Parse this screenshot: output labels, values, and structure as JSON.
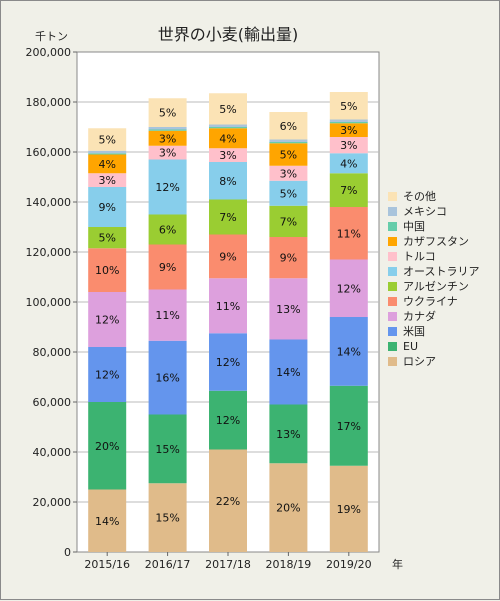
{
  "chart_data": {
    "type": "stacked-bar",
    "title": "世界の小麦(輸出量)",
    "ylabel": "千トン",
    "xlabel": "年",
    "ylim": [
      0,
      200000
    ],
    "y_ticks": [
      "0",
      "20,000",
      "40,000",
      "60,000",
      "80,000",
      "100,000",
      "120,000",
      "140,000",
      "160,000",
      "180,000",
      "200,000"
    ],
    "categories": [
      "2015/16",
      "2016/17",
      "2017/18",
      "2018/19",
      "2019/20"
    ],
    "legend_position": "right",
    "series": [
      {
        "name": "ロシア",
        "color": "#e0bb8a",
        "values": [
          25000,
          27500,
          41000,
          35500,
          34500
        ],
        "labels": [
          "14%",
          "15%",
          "22%",
          "20%",
          "19%"
        ]
      },
      {
        "name": "EU",
        "color": "#3cb371",
        "values": [
          35000,
          27500,
          23500,
          23500,
          32000
        ],
        "labels": [
          "20%",
          "15%",
          "12%",
          "13%",
          "17%"
        ]
      },
      {
        "name": "米国",
        "color": "#6495ed",
        "values": [
          22000,
          29500,
          23000,
          26000,
          27500
        ],
        "labels": [
          "12%",
          "16%",
          "12%",
          "14%",
          "14%"
        ]
      },
      {
        "name": "カナダ",
        "color": "#dda0dd",
        "values": [
          22000,
          20500,
          22000,
          24500,
          23000
        ],
        "labels": [
          "12%",
          "11%",
          "11%",
          "13%",
          "12%"
        ]
      },
      {
        "name": "ウクライナ",
        "color": "#fa8c6e",
        "values": [
          17500,
          18000,
          17500,
          16500,
          21000
        ],
        "labels": [
          "10%",
          "9%",
          "9%",
          "9%",
          "11%"
        ]
      },
      {
        "name": "アルゼンチン",
        "color": "#9acd32",
        "values": [
          8500,
          12000,
          14000,
          12500,
          13500
        ],
        "labels": [
          "5%",
          "6%",
          "7%",
          "7%",
          "7%"
        ]
      },
      {
        "name": "オーストラリア",
        "color": "#87ceeb",
        "values": [
          16000,
          22000,
          15000,
          10000,
          8000
        ],
        "labels": [
          "9%",
          "12%",
          "8%",
          "5%",
          "4%"
        ]
      },
      {
        "name": "トルコ",
        "color": "#ffc0cb",
        "values": [
          5500,
          5500,
          5500,
          6000,
          6500
        ],
        "labels": [
          "3%",
          "3%",
          "3%",
          "3%",
          "3%"
        ]
      },
      {
        "name": "カザフスタン",
        "color": "#ffa500",
        "values": [
          7500,
          6000,
          8000,
          9000,
          5500
        ],
        "labels": [
          "4%",
          "3%",
          "4%",
          "5%",
          "3%"
        ]
      },
      {
        "name": "中国",
        "color": "#66cdaa",
        "values": [
          500,
          500,
          500,
          500,
          500
        ],
        "labels": [
          "",
          "",
          "",
          "",
          ""
        ]
      },
      {
        "name": "メキシコ",
        "color": "#a9c4dc",
        "values": [
          1000,
          1000,
          1000,
          1000,
          1000
        ],
        "labels": [
          "",
          "",
          "",
          "",
          ""
        ]
      },
      {
        "name": "その他",
        "color": "#fbe3b5",
        "values": [
          9000,
          11500,
          12500,
          11000,
          11000
        ],
        "labels": [
          "5%",
          "5%",
          "5%",
          "6%",
          "5%"
        ]
      }
    ]
  }
}
